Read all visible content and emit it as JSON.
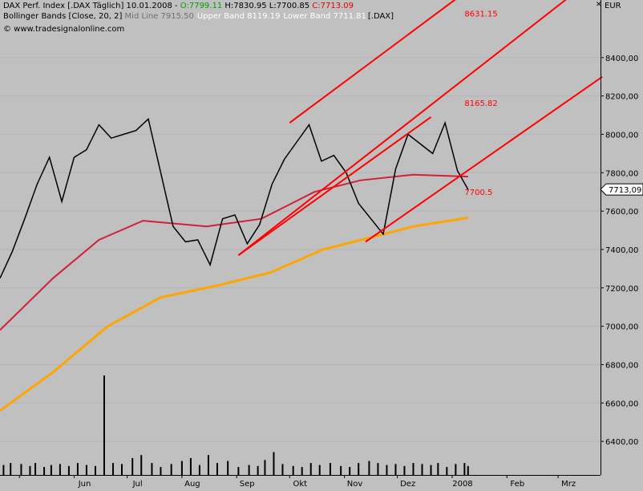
{
  "header": {
    "line1_prefix": "DAX Perf. Index [.DAX  Täglich] 10.01.2008 - ",
    "open": "O:7799.11",
    "rest": " H:7830.95 L:7700.85 ",
    "close": "C:7713.09",
    "line2_prefix": "Bollinger Bands [Close, 20, 2] ",
    "mid": "Mid Line 7915.50",
    "upper": "Upper Band 8119.19",
    "lower": "Lower Band 7711.81",
    "symbol": "[.DAX]",
    "watermark": "© www.tradesignalonline.com",
    "close_button": "✕"
  },
  "colors": {
    "background": "#c0c0c0",
    "channel": "#ff0000",
    "ma_long": "#ffa500",
    "ma_mid": "#d0203c",
    "bollinger_outer": "#ffffff",
    "bollinger_mid": "#606060",
    "bollinger_alt": "#e8d040",
    "price": "#000000"
  },
  "chart_data": {
    "type": "line",
    "title": "DAX Perf. Index [.DAX  Täglich]",
    "ylabel": "EUR",
    "ylim": [
      6225,
      8700
    ],
    "ylabel_ticks": [
      {
        "v": 6400,
        "t": "6400,00"
      },
      {
        "v": 6600,
        "t": "6600,00"
      },
      {
        "v": 6800,
        "t": "6800,00"
      },
      {
        "v": 7000,
        "t": "7000,00"
      },
      {
        "v": 7200,
        "t": "7200,00"
      },
      {
        "v": 7400,
        "t": "7400,00"
      },
      {
        "v": 7600,
        "t": "7600,00"
      },
      {
        "v": 7800,
        "t": "7800,00"
      },
      {
        "v": 8000,
        "t": "8000,00"
      },
      {
        "v": 8200,
        "t": "8200,00"
      },
      {
        "v": 8400,
        "t": "8400,00"
      }
    ],
    "price_label": "7713,09",
    "x_range": [
      "2007-04-20",
      "2008-03-25"
    ],
    "month_ticks": [
      {
        "d": "2007-05-01",
        "label": ""
      },
      {
        "d": "2007-06-01",
        "label": "Jun"
      },
      {
        "d": "2007-07-01",
        "label": "Jul"
      },
      {
        "d": "2007-08-01",
        "label": "Aug"
      },
      {
        "d": "2007-09-01",
        "label": "Sep"
      },
      {
        "d": "2007-10-01",
        "label": "Okt"
      },
      {
        "d": "2007-11-01",
        "label": "Nov"
      },
      {
        "d": "2007-12-01",
        "label": "Dez"
      },
      {
        "d": "2008-01-01",
        "label": "2008"
      },
      {
        "d": "2008-02-01",
        "label": "Feb"
      },
      {
        "d": "2008-03-01",
        "label": "Mrz"
      }
    ],
    "close_series": [
      {
        "d": "2007-04-20",
        "v": 7250
      },
      {
        "d": "2007-04-27",
        "v": 7390
      },
      {
        "d": "2007-05-04",
        "v": 7560
      },
      {
        "d": "2007-05-11",
        "v": 7740
      },
      {
        "d": "2007-05-18",
        "v": 7880
      },
      {
        "d": "2007-05-25",
        "v": 7650
      },
      {
        "d": "2007-06-01",
        "v": 7880
      },
      {
        "d": "2007-06-08",
        "v": 7920
      },
      {
        "d": "2007-06-15",
        "v": 8050
      },
      {
        "d": "2007-06-22",
        "v": 7980
      },
      {
        "d": "2007-06-29",
        "v": 8000
      },
      {
        "d": "2007-07-06",
        "v": 8020
      },
      {
        "d": "2007-07-13",
        "v": 8080
      },
      {
        "d": "2007-07-20",
        "v": 7800
      },
      {
        "d": "2007-07-27",
        "v": 7520
      },
      {
        "d": "2007-08-03",
        "v": 7440
      },
      {
        "d": "2007-08-10",
        "v": 7450
      },
      {
        "d": "2007-08-17",
        "v": 7320
      },
      {
        "d": "2007-08-24",
        "v": 7560
      },
      {
        "d": "2007-08-31",
        "v": 7580
      },
      {
        "d": "2007-09-07",
        "v": 7430
      },
      {
        "d": "2007-09-14",
        "v": 7530
      },
      {
        "d": "2007-09-21",
        "v": 7740
      },
      {
        "d": "2007-09-28",
        "v": 7870
      },
      {
        "d": "2007-10-05",
        "v": 7960
      },
      {
        "d": "2007-10-12",
        "v": 8050
      },
      {
        "d": "2007-10-19",
        "v": 7860
      },
      {
        "d": "2007-10-26",
        "v": 7890
      },
      {
        "d": "2007-11-02",
        "v": 7800
      },
      {
        "d": "2007-11-09",
        "v": 7640
      },
      {
        "d": "2007-11-16",
        "v": 7560
      },
      {
        "d": "2007-11-23",
        "v": 7480
      },
      {
        "d": "2007-11-30",
        "v": 7820
      },
      {
        "d": "2007-12-07",
        "v": 8000
      },
      {
        "d": "2007-12-14",
        "v": 7950
      },
      {
        "d": "2007-12-21",
        "v": 7900
      },
      {
        "d": "2007-12-28",
        "v": 8060
      },
      {
        "d": "2008-01-04",
        "v": 7810
      },
      {
        "d": "2008-01-10",
        "v": 7713
      }
    ],
    "ma_long_series": [
      {
        "d": "2007-04-20",
        "v": 6560
      },
      {
        "d": "2007-05-20",
        "v": 6760
      },
      {
        "d": "2007-06-20",
        "v": 7000
      },
      {
        "d": "2007-07-20",
        "v": 7150
      },
      {
        "d": "2007-08-20",
        "v": 7210
      },
      {
        "d": "2007-09-20",
        "v": 7280
      },
      {
        "d": "2007-10-20",
        "v": 7400
      },
      {
        "d": "2007-11-15",
        "v": 7460
      },
      {
        "d": "2007-12-10",
        "v": 7520
      },
      {
        "d": "2008-01-10",
        "v": 7565
      }
    ],
    "ma_mid_series": [
      {
        "d": "2007-04-20",
        "v": 6980
      },
      {
        "d": "2007-05-20",
        "v": 7250
      },
      {
        "d": "2007-06-15",
        "v": 7450
      },
      {
        "d": "2007-07-10",
        "v": 7550
      },
      {
        "d": "2007-08-15",
        "v": 7520
      },
      {
        "d": "2007-09-15",
        "v": 7560
      },
      {
        "d": "2007-10-15",
        "v": 7700
      },
      {
        "d": "2007-11-10",
        "v": 7760
      },
      {
        "d": "2007-12-10",
        "v": 7790
      },
      {
        "d": "2008-01-10",
        "v": 7780
      }
    ],
    "channel_lines": [
      {
        "from": {
          "d": "2007-09-02",
          "v": 7370
        },
        "to": {
          "d": "2008-03-26",
          "v": 8850
        }
      },
      {
        "from": {
          "d": "2007-09-02",
          "v": 7370
        },
        "to": {
          "d": "2007-12-20",
          "v": 8090
        }
      },
      {
        "from": {
          "d": "2007-10-01",
          "v": 8060
        },
        "to": {
          "d": "2008-01-17",
          "v": 8800
        }
      },
      {
        "from": {
          "d": "2007-11-13",
          "v": 7440
        },
        "to": {
          "d": "2008-03-26",
          "v": 8300
        }
      }
    ],
    "channel_labels": [
      {
        "d": "2008-01-08",
        "v": 8631.15,
        "t": "8631.15"
      },
      {
        "d": "2008-01-08",
        "v": 8165.82,
        "t": "8165.82"
      },
      {
        "d": "2008-01-08",
        "v": 7700.5,
        "t": "7700.5"
      }
    ],
    "volume_max": 100,
    "volume_series": [
      {
        "d": "2007-04-22",
        "v": 10
      },
      {
        "d": "2007-04-26",
        "v": 12
      },
      {
        "d": "2007-05-02",
        "v": 11
      },
      {
        "d": "2007-05-07",
        "v": 9
      },
      {
        "d": "2007-05-10",
        "v": 12
      },
      {
        "d": "2007-05-15",
        "v": 8
      },
      {
        "d": "2007-05-19",
        "v": 10
      },
      {
        "d": "2007-05-24",
        "v": 11
      },
      {
        "d": "2007-05-29",
        "v": 9
      },
      {
        "d": "2007-06-03",
        "v": 12
      },
      {
        "d": "2007-06-08",
        "v": 10
      },
      {
        "d": "2007-06-13",
        "v": 9
      },
      {
        "d": "2007-06-18",
        "v": 100
      },
      {
        "d": "2007-06-23",
        "v": 12
      },
      {
        "d": "2007-06-28",
        "v": 11
      },
      {
        "d": "2007-07-04",
        "v": 17
      },
      {
        "d": "2007-07-09",
        "v": 20
      },
      {
        "d": "2007-07-15",
        "v": 12
      },
      {
        "d": "2007-07-20",
        "v": 8
      },
      {
        "d": "2007-07-26",
        "v": 11
      },
      {
        "d": "2007-08-01",
        "v": 14
      },
      {
        "d": "2007-08-06",
        "v": 17
      },
      {
        "d": "2007-08-11",
        "v": 10
      },
      {
        "d": "2007-08-16",
        "v": 20
      },
      {
        "d": "2007-08-21",
        "v": 12
      },
      {
        "d": "2007-08-27",
        "v": 14
      },
      {
        "d": "2007-09-02",
        "v": 8
      },
      {
        "d": "2007-09-08",
        "v": 10
      },
      {
        "d": "2007-09-13",
        "v": 9
      },
      {
        "d": "2007-09-17",
        "v": 15
      },
      {
        "d": "2007-09-22",
        "v": 23
      },
      {
        "d": "2007-09-27",
        "v": 11
      },
      {
        "d": "2007-10-03",
        "v": 9
      },
      {
        "d": "2007-10-08",
        "v": 8
      },
      {
        "d": "2007-10-13",
        "v": 12
      },
      {
        "d": "2007-10-18",
        "v": 10
      },
      {
        "d": "2007-10-24",
        "v": 12
      },
      {
        "d": "2007-10-30",
        "v": 9
      },
      {
        "d": "2007-11-04",
        "v": 8
      },
      {
        "d": "2007-11-09",
        "v": 12
      },
      {
        "d": "2007-11-15",
        "v": 14
      },
      {
        "d": "2007-11-20",
        "v": 12
      },
      {
        "d": "2007-11-25",
        "v": 10
      },
      {
        "d": "2007-11-30",
        "v": 11
      },
      {
        "d": "2007-12-05",
        "v": 9
      },
      {
        "d": "2007-12-10",
        "v": 12
      },
      {
        "d": "2007-12-15",
        "v": 11
      },
      {
        "d": "2007-12-20",
        "v": 10
      },
      {
        "d": "2007-12-24",
        "v": 12
      },
      {
        "d": "2007-12-29",
        "v": 8
      },
      {
        "d": "2008-01-03",
        "v": 11
      },
      {
        "d": "2008-01-08",
        "v": 12
      },
      {
        "d": "2008-01-10",
        "v": 9
      }
    ]
  }
}
